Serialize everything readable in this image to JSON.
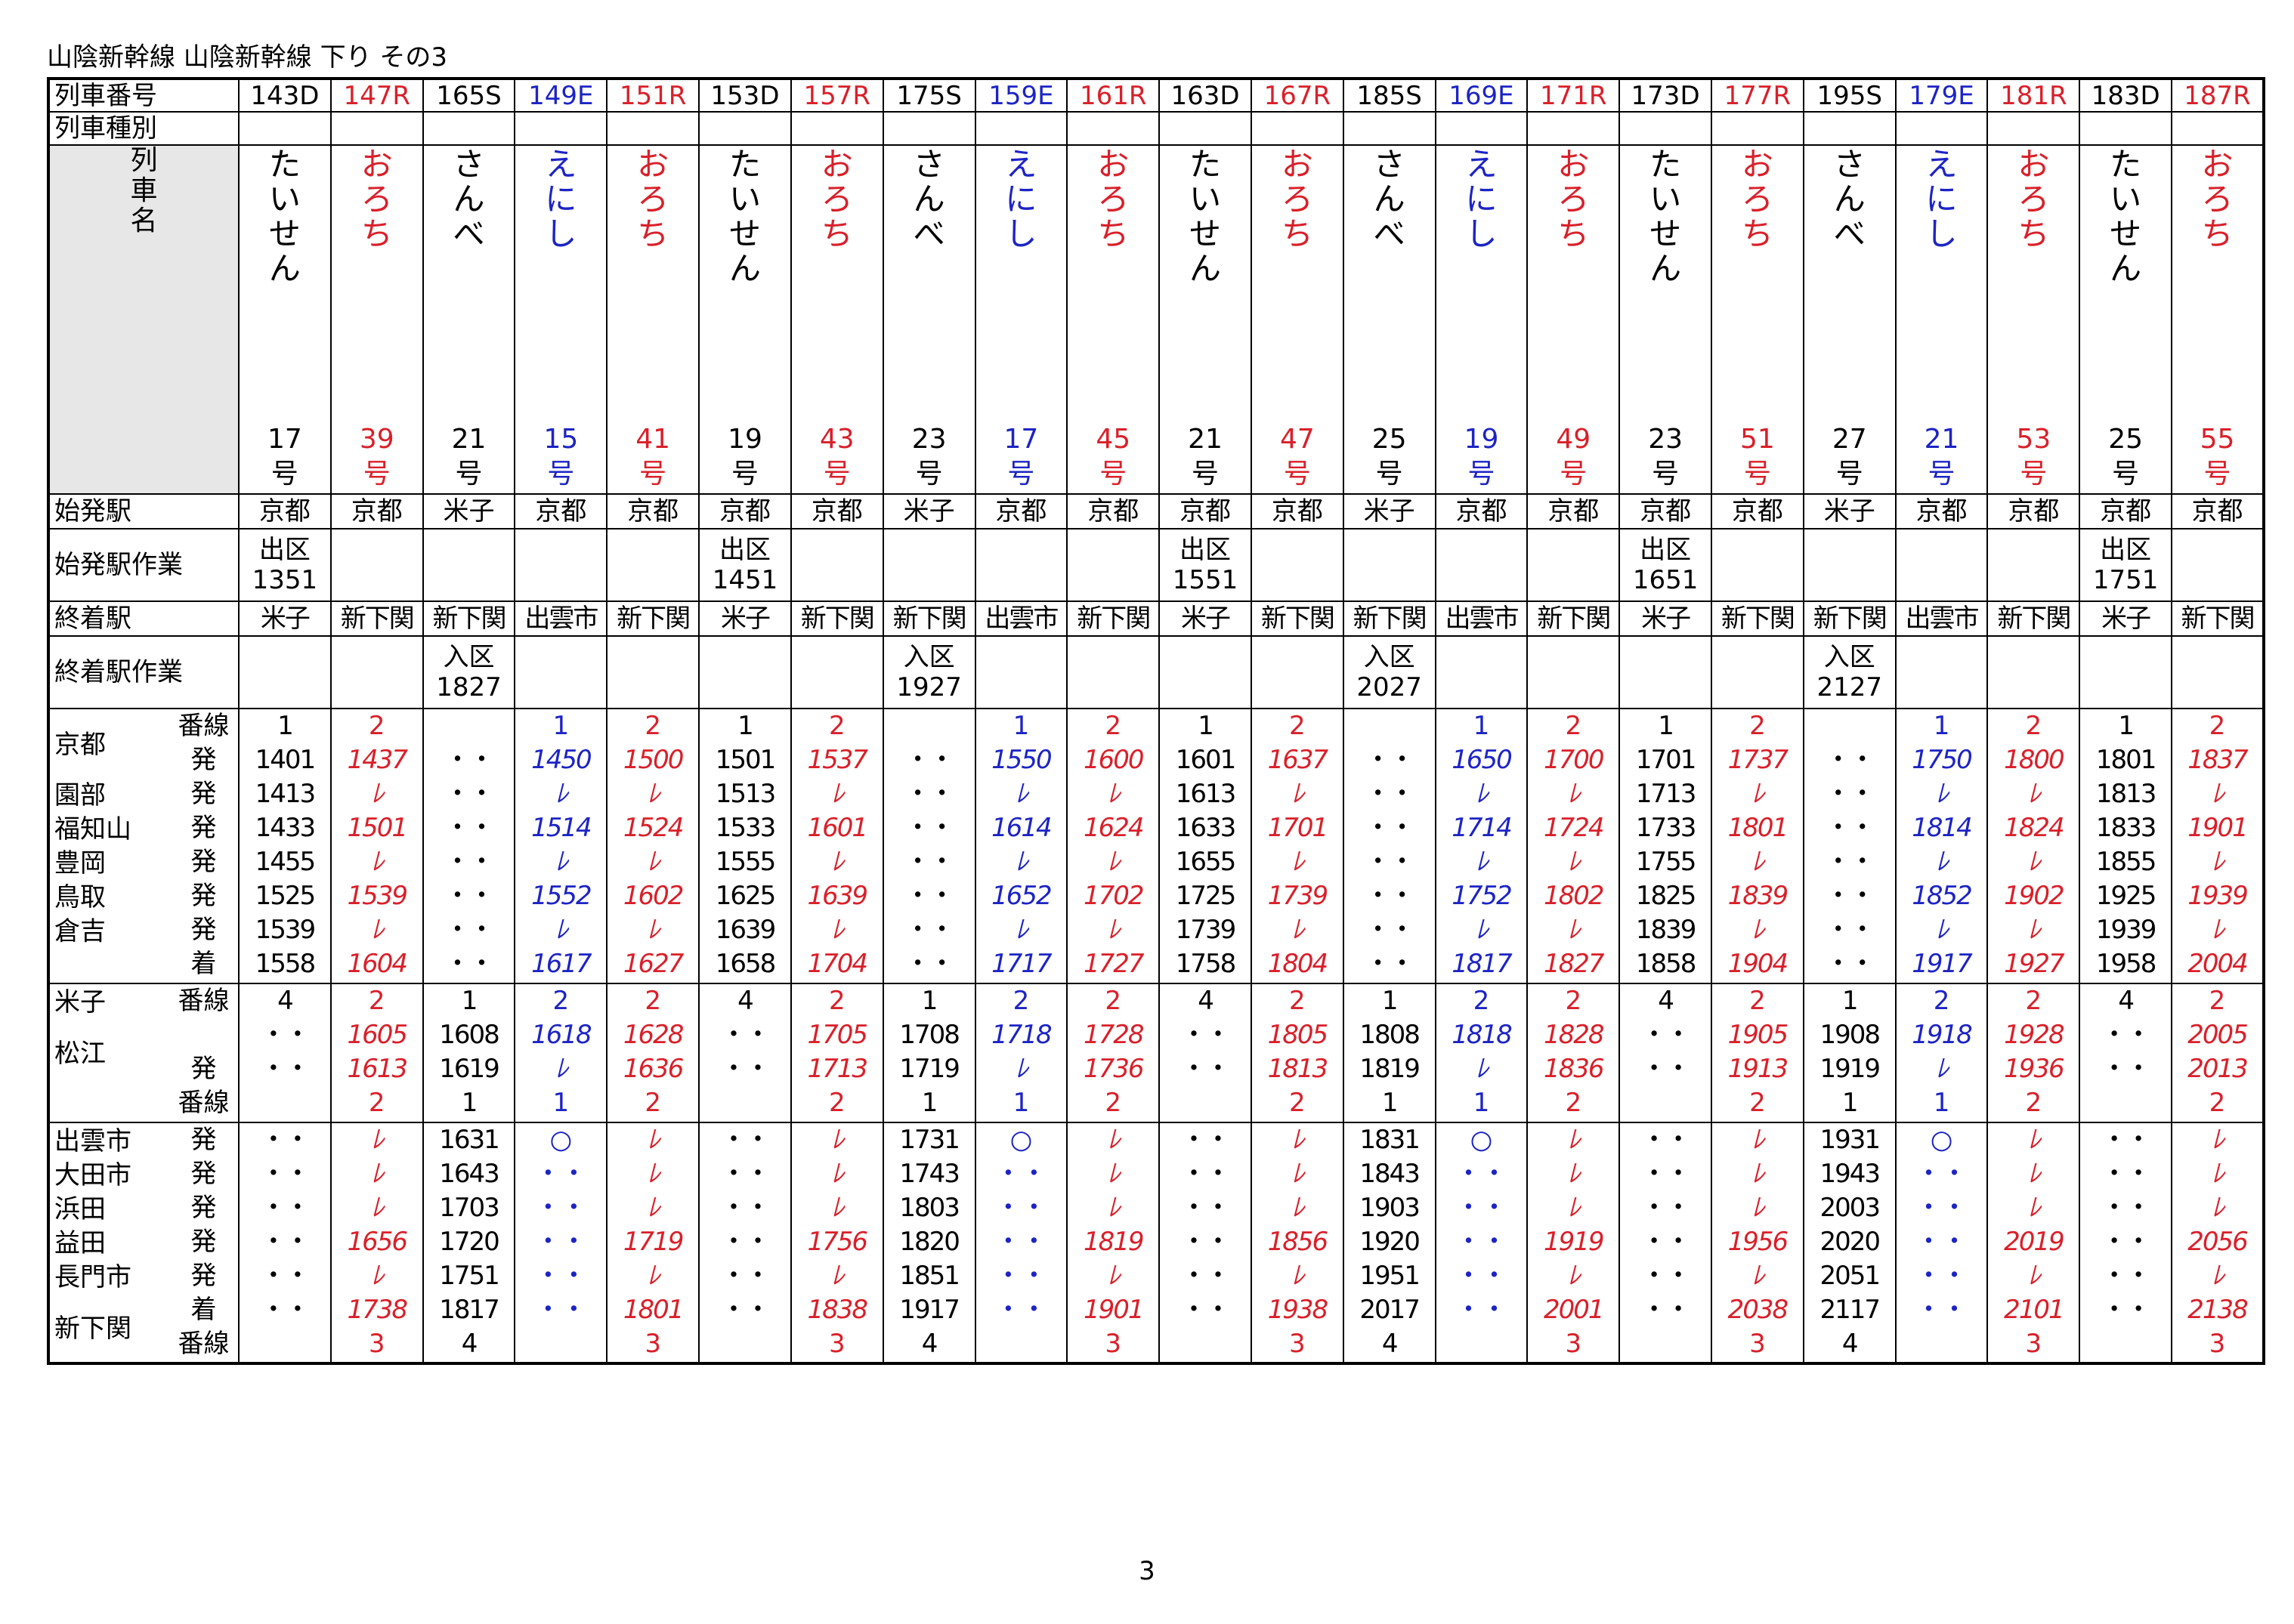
{
  "title": "山陰新幹線 山陰新幹線 下り その3",
  "page_number": "3",
  "colors": {
    "red": "#d9202a",
    "blue": "#1d24c4",
    "black": "#000000",
    "header_grey": "#e7e7e7"
  },
  "row_labels": {
    "number": "列車番号",
    "kind": "列車種別",
    "name": [
      "列",
      "車",
      "名"
    ],
    "origin": "始発駅",
    "origin_op": "始発駅作業",
    "dest": "終着駅",
    "dest_op": "終着駅作業"
  },
  "sections": [
    {
      "stations": [
        "京都",
        "",
        "園部",
        "福知山",
        "豊岡",
        "鳥取",
        "倉吉",
        ""
      ],
      "kinds": [
        "番線",
        "発",
        "発",
        "発",
        "発",
        "発",
        "発",
        "着"
      ],
      "station_label_rows": [
        0,
        2,
        3,
        4,
        5,
        6
      ]
    },
    {
      "stations": [
        "米子",
        "",
        "松江",
        ""
      ],
      "kinds": [
        "番線",
        "",
        "発",
        "番線"
      ]
    },
    {
      "stations": [
        "出雲市",
        "大田市",
        "浜田",
        "益田",
        "長門市",
        "",
        "新下関"
      ],
      "kinds": [
        "発",
        "発",
        "発",
        "発",
        "発",
        "着",
        "番線"
      ]
    }
  ],
  "trains": [
    {
      "no": "143D",
      "color": "black",
      "name": [
        "た",
        "い",
        "せ",
        "ん"
      ],
      "num": "17",
      "origin": "京都",
      "origin_op": [
        "出区",
        "1351"
      ],
      "dest": "米子",
      "dest_op": [
        "",
        ""
      ],
      "t1": [
        "1",
        "1401",
        "1413",
        "1433",
        "1455",
        "1525",
        "1539",
        "1558"
      ],
      "t2": [
        "4",
        "・・",
        "・・",
        ""
      ],
      "t3": [
        "・・",
        "・・",
        "・・",
        "・・",
        "・・",
        "・・",
        ""
      ]
    },
    {
      "no": "147R",
      "color": "red",
      "name": [
        "お",
        "ろ",
        "ち"
      ],
      "num": "39",
      "origin": "京都",
      "origin_op": [
        "",
        ""
      ],
      "dest": "新下関",
      "dest_op": [
        "",
        ""
      ],
      "t1": [
        "2",
        "1437",
        "ﾚ",
        "1501",
        "ﾚ",
        "1539",
        "ﾚ",
        "1604"
      ],
      "t2": [
        "2",
        "1605",
        "1613",
        "2"
      ],
      "t3": [
        "ﾚ",
        "ﾚ",
        "ﾚ",
        "1656",
        "ﾚ",
        "1738",
        "3"
      ]
    },
    {
      "no": "165S",
      "color": "black",
      "name": [
        "さ",
        "ん",
        "べ"
      ],
      "num": "21",
      "origin": "米子",
      "origin_op": [
        "",
        ""
      ],
      "dest": "新下関",
      "dest_op": [
        "入区",
        "1827"
      ],
      "t1": [
        "",
        "・・",
        "・・",
        "・・",
        "・・",
        "・・",
        "・・",
        "・・"
      ],
      "t2": [
        "1",
        "1608",
        "1619",
        "1"
      ],
      "t3": [
        "1631",
        "1643",
        "1703",
        "1720",
        "1751",
        "1817",
        "4"
      ]
    },
    {
      "no": "149E",
      "color": "blue",
      "name": [
        "え",
        "に",
        "し"
      ],
      "num": "15",
      "origin": "京都",
      "origin_op": [
        "",
        ""
      ],
      "dest": "出雲市",
      "dest_op": [
        "",
        ""
      ],
      "t1": [
        "1",
        "1450",
        "ﾚ",
        "1514",
        "ﾚ",
        "1552",
        "ﾚ",
        "1617"
      ],
      "t2": [
        "2",
        "1618",
        "ﾚ",
        "1"
      ],
      "t3": [
        "○",
        "・・",
        "・・",
        "・・",
        "・・",
        "・・",
        ""
      ]
    },
    {
      "no": "151R",
      "color": "red",
      "name": [
        "お",
        "ろ",
        "ち"
      ],
      "num": "41",
      "origin": "京都",
      "origin_op": [
        "",
        ""
      ],
      "dest": "新下関",
      "dest_op": [
        "",
        ""
      ],
      "t1": [
        "2",
        "1500",
        "ﾚ",
        "1524",
        "ﾚ",
        "1602",
        "ﾚ",
        "1627"
      ],
      "t2": [
        "2",
        "1628",
        "1636",
        "2"
      ],
      "t3": [
        "ﾚ",
        "ﾚ",
        "ﾚ",
        "1719",
        "ﾚ",
        "1801",
        "3"
      ]
    },
    {
      "no": "153D",
      "color": "black",
      "name": [
        "た",
        "い",
        "せ",
        "ん"
      ],
      "num": "19",
      "origin": "京都",
      "origin_op": [
        "出区",
        "1451"
      ],
      "dest": "米子",
      "dest_op": [
        "",
        ""
      ],
      "t1": [
        "1",
        "1501",
        "1513",
        "1533",
        "1555",
        "1625",
        "1639",
        "1658"
      ],
      "t2": [
        "4",
        "・・",
        "・・",
        ""
      ],
      "t3": [
        "・・",
        "・・",
        "・・",
        "・・",
        "・・",
        "・・",
        ""
      ]
    },
    {
      "no": "157R",
      "color": "red",
      "name": [
        "お",
        "ろ",
        "ち"
      ],
      "num": "43",
      "origin": "京都",
      "origin_op": [
        "",
        ""
      ],
      "dest": "新下関",
      "dest_op": [
        "",
        ""
      ],
      "t1": [
        "2",
        "1537",
        "ﾚ",
        "1601",
        "ﾚ",
        "1639",
        "ﾚ",
        "1704"
      ],
      "t2": [
        "2",
        "1705",
        "1713",
        "2"
      ],
      "t3": [
        "ﾚ",
        "ﾚ",
        "ﾚ",
        "1756",
        "ﾚ",
        "1838",
        "3"
      ]
    },
    {
      "no": "175S",
      "color": "black",
      "name": [
        "さ",
        "ん",
        "べ"
      ],
      "num": "23",
      "origin": "米子",
      "origin_op": [
        "",
        ""
      ],
      "dest": "新下関",
      "dest_op": [
        "入区",
        "1927"
      ],
      "t1": [
        "",
        "・・",
        "・・",
        "・・",
        "・・",
        "・・",
        "・・",
        "・・"
      ],
      "t2": [
        "1",
        "1708",
        "1719",
        "1"
      ],
      "t3": [
        "1731",
        "1743",
        "1803",
        "1820",
        "1851",
        "1917",
        "4"
      ]
    },
    {
      "no": "159E",
      "color": "blue",
      "name": [
        "え",
        "に",
        "し"
      ],
      "num": "17",
      "origin": "京都",
      "origin_op": [
        "",
        ""
      ],
      "dest": "出雲市",
      "dest_op": [
        "",
        ""
      ],
      "t1": [
        "1",
        "1550",
        "ﾚ",
        "1614",
        "ﾚ",
        "1652",
        "ﾚ",
        "1717"
      ],
      "t2": [
        "2",
        "1718",
        "ﾚ",
        "1"
      ],
      "t3": [
        "○",
        "・・",
        "・・",
        "・・",
        "・・",
        "・・",
        ""
      ]
    },
    {
      "no": "161R",
      "color": "red",
      "name": [
        "お",
        "ろ",
        "ち"
      ],
      "num": "45",
      "origin": "京都",
      "origin_op": [
        "",
        ""
      ],
      "dest": "新下関",
      "dest_op": [
        "",
        ""
      ],
      "t1": [
        "2",
        "1600",
        "ﾚ",
        "1624",
        "ﾚ",
        "1702",
        "ﾚ",
        "1727"
      ],
      "t2": [
        "2",
        "1728",
        "1736",
        "2"
      ],
      "t3": [
        "ﾚ",
        "ﾚ",
        "ﾚ",
        "1819",
        "ﾚ",
        "1901",
        "3"
      ]
    },
    {
      "no": "163D",
      "color": "black",
      "name": [
        "た",
        "い",
        "せ",
        "ん"
      ],
      "num": "21",
      "origin": "京都",
      "origin_op": [
        "出区",
        "1551"
      ],
      "dest": "米子",
      "dest_op": [
        "",
        ""
      ],
      "t1": [
        "1",
        "1601",
        "1613",
        "1633",
        "1655",
        "1725",
        "1739",
        "1758"
      ],
      "t2": [
        "4",
        "・・",
        "・・",
        ""
      ],
      "t3": [
        "・・",
        "・・",
        "・・",
        "・・",
        "・・",
        "・・",
        ""
      ]
    },
    {
      "no": "167R",
      "color": "red",
      "name": [
        "お",
        "ろ",
        "ち"
      ],
      "num": "47",
      "origin": "京都",
      "origin_op": [
        "",
        ""
      ],
      "dest": "新下関",
      "dest_op": [
        "",
        ""
      ],
      "t1": [
        "2",
        "1637",
        "ﾚ",
        "1701",
        "ﾚ",
        "1739",
        "ﾚ",
        "1804"
      ],
      "t2": [
        "2",
        "1805",
        "1813",
        "2"
      ],
      "t3": [
        "ﾚ",
        "ﾚ",
        "ﾚ",
        "1856",
        "ﾚ",
        "1938",
        "3"
      ]
    },
    {
      "no": "185S",
      "color": "black",
      "name": [
        "さ",
        "ん",
        "べ"
      ],
      "num": "25",
      "origin": "米子",
      "origin_op": [
        "",
        ""
      ],
      "dest": "新下関",
      "dest_op": [
        "入区",
        "2027"
      ],
      "t1": [
        "",
        "・・",
        "・・",
        "・・",
        "・・",
        "・・",
        "・・",
        "・・"
      ],
      "t2": [
        "1",
        "1808",
        "1819",
        "1"
      ],
      "t3": [
        "1831",
        "1843",
        "1903",
        "1920",
        "1951",
        "2017",
        "4"
      ]
    },
    {
      "no": "169E",
      "color": "blue",
      "name": [
        "え",
        "に",
        "し"
      ],
      "num": "19",
      "origin": "京都",
      "origin_op": [
        "",
        ""
      ],
      "dest": "出雲市",
      "dest_op": [
        "",
        ""
      ],
      "t1": [
        "1",
        "1650",
        "ﾚ",
        "1714",
        "ﾚ",
        "1752",
        "ﾚ",
        "1817"
      ],
      "t2": [
        "2",
        "1818",
        "ﾚ",
        "1"
      ],
      "t3": [
        "○",
        "・・",
        "・・",
        "・・",
        "・・",
        "・・",
        ""
      ]
    },
    {
      "no": "171R",
      "color": "red",
      "name": [
        "お",
        "ろ",
        "ち"
      ],
      "num": "49",
      "origin": "京都",
      "origin_op": [
        "",
        ""
      ],
      "dest": "新下関",
      "dest_op": [
        "",
        ""
      ],
      "t1": [
        "2",
        "1700",
        "ﾚ",
        "1724",
        "ﾚ",
        "1802",
        "ﾚ",
        "1827"
      ],
      "t2": [
        "2",
        "1828",
        "1836",
        "2"
      ],
      "t3": [
        "ﾚ",
        "ﾚ",
        "ﾚ",
        "1919",
        "ﾚ",
        "2001",
        "3"
      ]
    },
    {
      "no": "173D",
      "color": "black",
      "name": [
        "た",
        "い",
        "せ",
        "ん"
      ],
      "num": "23",
      "origin": "京都",
      "origin_op": [
        "出区",
        "1651"
      ],
      "dest": "米子",
      "dest_op": [
        "",
        ""
      ],
      "t1": [
        "1",
        "1701",
        "1713",
        "1733",
        "1755",
        "1825",
        "1839",
        "1858"
      ],
      "t2": [
        "4",
        "・・",
        "・・",
        ""
      ],
      "t3": [
        "・・",
        "・・",
        "・・",
        "・・",
        "・・",
        "・・",
        ""
      ]
    },
    {
      "no": "177R",
      "color": "red",
      "name": [
        "お",
        "ろ",
        "ち"
      ],
      "num": "51",
      "origin": "京都",
      "origin_op": [
        "",
        ""
      ],
      "dest": "新下関",
      "dest_op": [
        "",
        ""
      ],
      "t1": [
        "2",
        "1737",
        "ﾚ",
        "1801",
        "ﾚ",
        "1839",
        "ﾚ",
        "1904"
      ],
      "t2": [
        "2",
        "1905",
        "1913",
        "2"
      ],
      "t3": [
        "ﾚ",
        "ﾚ",
        "ﾚ",
        "1956",
        "ﾚ",
        "2038",
        "3"
      ]
    },
    {
      "no": "195S",
      "color": "black",
      "name": [
        "さ",
        "ん",
        "べ"
      ],
      "num": "27",
      "origin": "米子",
      "origin_op": [
        "",
        ""
      ],
      "dest": "新下関",
      "dest_op": [
        "入区",
        "2127"
      ],
      "t1": [
        "",
        "・・",
        "・・",
        "・・",
        "・・",
        "・・",
        "・・",
        "・・"
      ],
      "t2": [
        "1",
        "1908",
        "1919",
        "1"
      ],
      "t3": [
        "1931",
        "1943",
        "2003",
        "2020",
        "2051",
        "2117",
        "4"
      ]
    },
    {
      "no": "179E",
      "color": "blue",
      "name": [
        "え",
        "に",
        "し"
      ],
      "num": "21",
      "origin": "京都",
      "origin_op": [
        "",
        ""
      ],
      "dest": "出雲市",
      "dest_op": [
        "",
        ""
      ],
      "t1": [
        "1",
        "1750",
        "ﾚ",
        "1814",
        "ﾚ",
        "1852",
        "ﾚ",
        "1917"
      ],
      "t2": [
        "2",
        "1918",
        "ﾚ",
        "1"
      ],
      "t3": [
        "○",
        "・・",
        "・・",
        "・・",
        "・・",
        "・・",
        ""
      ]
    },
    {
      "no": "181R",
      "color": "red",
      "name": [
        "お",
        "ろ",
        "ち"
      ],
      "num": "53",
      "origin": "京都",
      "origin_op": [
        "",
        ""
      ],
      "dest": "新下関",
      "dest_op": [
        "",
        ""
      ],
      "t1": [
        "2",
        "1800",
        "ﾚ",
        "1824",
        "ﾚ",
        "1902",
        "ﾚ",
        "1927"
      ],
      "t2": [
        "2",
        "1928",
        "1936",
        "2"
      ],
      "t3": [
        "ﾚ",
        "ﾚ",
        "ﾚ",
        "2019",
        "ﾚ",
        "2101",
        "3"
      ]
    },
    {
      "no": "183D",
      "color": "black",
      "name": [
        "た",
        "い",
        "せ",
        "ん"
      ],
      "num": "25",
      "origin": "京都",
      "origin_op": [
        "出区",
        "1751"
      ],
      "dest": "米子",
      "dest_op": [
        "",
        ""
      ],
      "t1": [
        "1",
        "1801",
        "1813",
        "1833",
        "1855",
        "1925",
        "1939",
        "1958"
      ],
      "t2": [
        "4",
        "・・",
        "・・",
        ""
      ],
      "t3": [
        "・・",
        "・・",
        "・・",
        "・・",
        "・・",
        "・・",
        ""
      ]
    },
    {
      "no": "187R",
      "color": "red",
      "name": [
        "お",
        "ろ",
        "ち"
      ],
      "num": "55",
      "origin": "京都",
      "origin_op": [
        "",
        ""
      ],
      "dest": "新下関",
      "dest_op": [
        "",
        ""
      ],
      "t1": [
        "2",
        "1837",
        "ﾚ",
        "1901",
        "ﾚ",
        "1939",
        "ﾚ",
        "2004"
      ],
      "t2": [
        "2",
        "2005",
        "2013",
        "2"
      ],
      "t3": [
        "ﾚ",
        "ﾚ",
        "ﾚ",
        "2056",
        "ﾚ",
        "2138",
        "3"
      ]
    }
  ],
  "go_suffix": "号"
}
